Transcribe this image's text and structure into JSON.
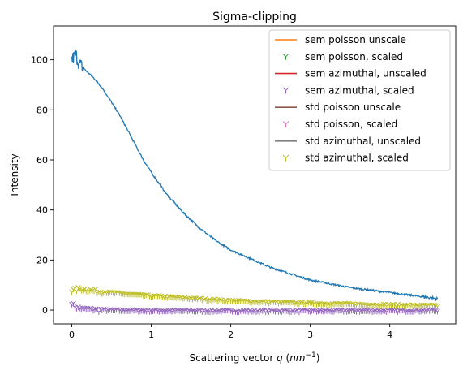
{
  "chart_data": {
    "type": "line",
    "title": "Sigma-clipping",
    "xlabel_prefix": "Scattering vector ",
    "xlabel_var": "q",
    "xlabel_unit_open": " (",
    "xlabel_unit_var": "nm",
    "xlabel_unit_exp": "−1",
    "xlabel_unit_close": ")",
    "ylabel": "Intensity",
    "xlim": [
      -0.23,
      4.83
    ],
    "ylim": [
      -5.5,
      113.5
    ],
    "xticks": [
      0,
      1,
      2,
      3,
      4
    ],
    "yticks": [
      0,
      20,
      40,
      60,
      80,
      100
    ],
    "grid": false,
    "legend_position": "top-right",
    "main_curve": {
      "color": "#1f77b4",
      "x": [
        0.0,
        0.05,
        0.1,
        0.2,
        0.3,
        0.4,
        0.5,
        0.6,
        0.7,
        0.8,
        0.9,
        1.0,
        1.2,
        1.4,
        1.6,
        1.8,
        2.0,
        2.5,
        3.0,
        3.5,
        4.0,
        4.5,
        4.6
      ],
      "y": [
        100,
        102,
        98,
        95,
        92,
        88,
        83,
        78,
        72,
        66,
        60,
        55,
        46,
        39,
        33,
        28,
        24,
        17,
        12,
        9,
        7,
        5,
        4.5
      ]
    },
    "low_series": [
      {
        "name": "sem azimuthal, scaled",
        "color": "#9467bd",
        "x": [
          0.0,
          0.03,
          0.06,
          0.1,
          0.15,
          0.2,
          0.3,
          0.5,
          1.0,
          2.0,
          3.0,
          4.0,
          4.6
        ],
        "y": [
          3,
          1.5,
          1.0,
          0.6,
          0.3,
          0.2,
          0.0,
          -0.2,
          -0.4,
          -0.5,
          -0.5,
          -0.4,
          -0.3
        ]
      },
      {
        "name": "std azimuthal, scaled",
        "color": "#bcbd22",
        "x": [
          0.0,
          0.1,
          0.3,
          0.5,
          1.0,
          1.5,
          2.0,
          2.5,
          3.0,
          3.5,
          4.0,
          4.5,
          4.6
        ],
        "y": [
          7.5,
          8.5,
          7.5,
          6.8,
          5.5,
          4.5,
          3.6,
          3.0,
          2.6,
          2.2,
          1.9,
          1.6,
          1.5
        ]
      }
    ],
    "legend": [
      {
        "label": "sem poisson unscale",
        "color": "#ff7f0e",
        "marker": "line"
      },
      {
        "label": "sem poisson, scaled",
        "color": "#2ca02c",
        "marker": "tri"
      },
      {
        "label": "sem azimuthal, unscaled",
        "color": "#d62728",
        "marker": "line"
      },
      {
        "label": "sem azimuthal, scaled",
        "color": "#9467bd",
        "marker": "tri"
      },
      {
        "label": "std poisson unscale",
        "color": "#8c564b",
        "marker": "line"
      },
      {
        "label": "std poisson, scaled",
        "color": "#e377c2",
        "marker": "tri"
      },
      {
        "label": "std azimuthal, unscaled",
        "color": "#7f7f7f",
        "marker": "line"
      },
      {
        "label": "std azimuthal, scaled",
        "color": "#bcbd22",
        "marker": "tri"
      }
    ]
  }
}
